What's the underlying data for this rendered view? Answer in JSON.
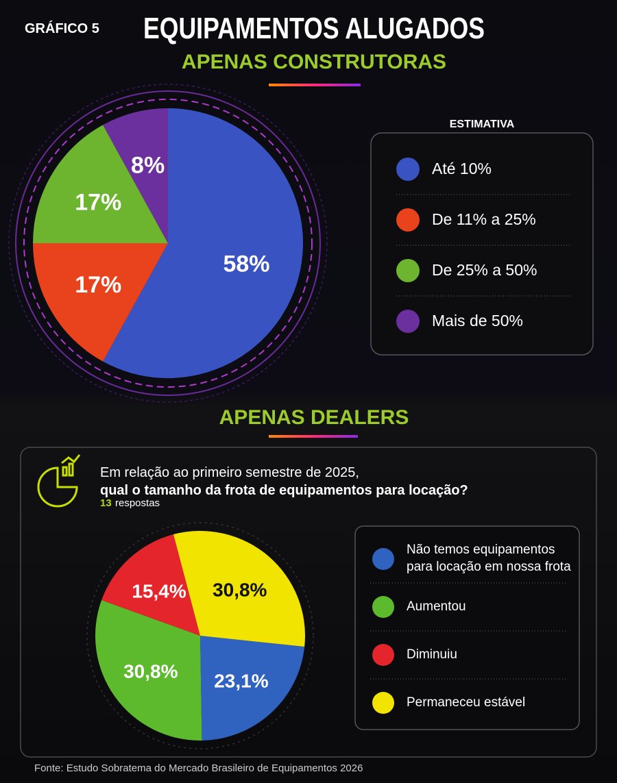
{
  "label": "GRÁFICO 5",
  "title": "EQUIPAMENTOS ALUGADOS",
  "source": "Fonte: Estudo Sobratema do Mercado Brasileiro de Equipamentos 2026",
  "chart_data": [
    {
      "type": "pie",
      "title": "APENAS CONSTRUTORAS",
      "legend_title": "ESTIMATIVA",
      "categories": [
        "Até 10%",
        "De 11% a 25%",
        "De 25% a 50%",
        "Mais de 50%"
      ],
      "values": [
        58,
        17,
        17,
        8
      ],
      "value_labels": [
        "58%",
        "17%",
        "17%",
        "8%"
      ],
      "colors": [
        "#3a53c2",
        "#e8431c",
        "#6db52f",
        "#6b2f9e"
      ]
    },
    {
      "type": "pie",
      "title": "APENAS DEALERS",
      "question": [
        "Em relação ao primeiro semestre de 2025,",
        "qual o tamanho da frota de equipamentos para locação?"
      ],
      "responses": 13,
      "responses_label": "respostas",
      "categories": [
        "Não temos equipamentos para locação em nossa frota",
        "Aumentou",
        "Diminuiu",
        "Permaneceu estável"
      ],
      "values": [
        23.1,
        30.8,
        15.4,
        30.8
      ],
      "value_labels": [
        "23,1%",
        "30,8%",
        "15,4%",
        "30,8%"
      ],
      "colors": [
        "#2f63bf",
        "#5cba2c",
        "#e4262c",
        "#f1e400"
      ]
    }
  ]
}
